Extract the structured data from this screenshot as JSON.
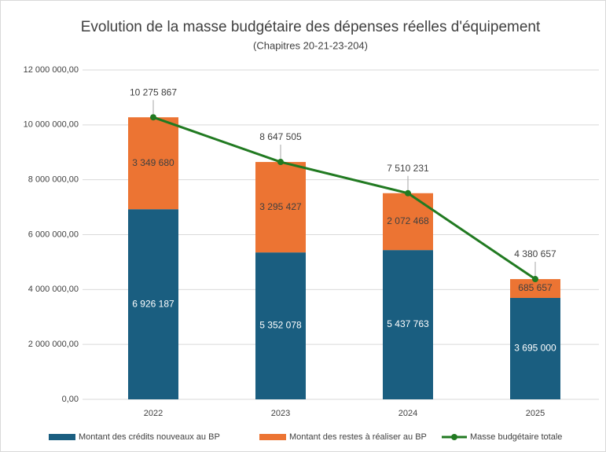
{
  "chart_data": {
    "type": "bar",
    "stacked": true,
    "title": "Evolution de la masse budgétaire des dépenses réelles d'équipement",
    "subtitle": "(Chapitres 20-21-23-204)",
    "categories": [
      "2022",
      "2023",
      "2024",
      "2025"
    ],
    "series": [
      {
        "name": "Montant des crédits nouveaux au BP",
        "color": "#1a5e80",
        "type": "bar",
        "values": [
          6926187,
          5352078,
          5437763,
          3695000
        ],
        "value_labels": [
          "6 926 187",
          "5 352 078",
          "5 437 763",
          "3 695 000"
        ]
      },
      {
        "name": "Montant des restes à réaliser au BP",
        "color": "#ec7433",
        "type": "bar",
        "values": [
          3349680,
          3295427,
          2072468,
          685657
        ],
        "value_labels": [
          "3 349 680",
          "3 295 427",
          "2 072 468",
          "685 657"
        ]
      },
      {
        "name": "Masse budgétaire totale",
        "color": "#217a21",
        "type": "line",
        "values": [
          10275867,
          8647505,
          7510231,
          4380657
        ],
        "value_labels": [
          "10 275 867",
          "8 647 505",
          "7 510 231",
          "4 380 657"
        ]
      }
    ],
    "ylim": [
      0,
      12000000
    ],
    "yticks": [
      {
        "value": 0,
        "label": "0,00"
      },
      {
        "value": 2000000,
        "label": "2 000 000,00"
      },
      {
        "value": 4000000,
        "label": "4 000 000,00"
      },
      {
        "value": 6000000,
        "label": "6 000 000,00"
      },
      {
        "value": 8000000,
        "label": "8 000 000,00"
      },
      {
        "value": 10000000,
        "label": "10 000 000,00"
      },
      {
        "value": 12000000,
        "label": "12 000 000,00"
      }
    ],
    "grid": true,
    "legend": "bottom"
  }
}
